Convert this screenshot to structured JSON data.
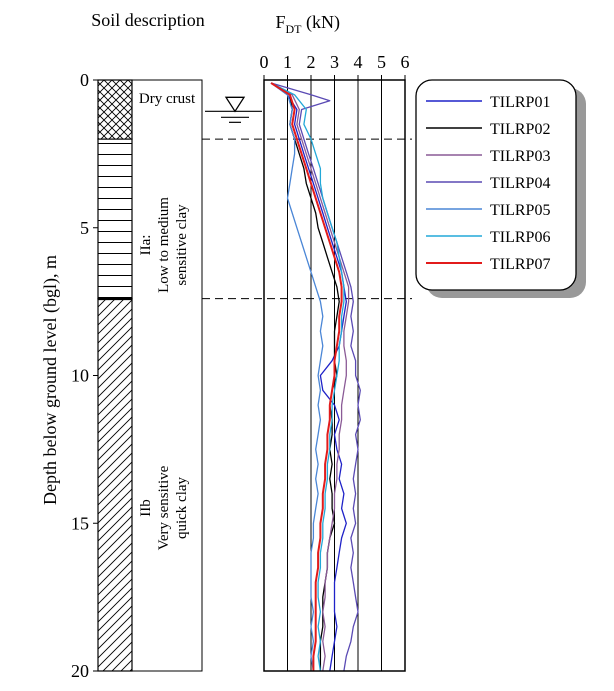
{
  "chart_data": {
    "type": "line",
    "title": "",
    "xlabel_main": "F",
    "xlabel_sub": "DT",
    "xlabel_unit": " (kN)",
    "ylabel": "Depth below ground level (bgl), m",
    "soil_title": "Soil description",
    "xlim": [
      0,
      6
    ],
    "ylim": [
      0,
      20
    ],
    "x_ticks": [
      "0",
      "1",
      "2",
      "3",
      "4",
      "5",
      "6"
    ],
    "y_ticks": [
      "0",
      "5",
      "10",
      "15",
      "20"
    ],
    "layers": [
      {
        "label": "Dry crust",
        "top": 0,
        "bottom": 2.0
      },
      {
        "label": "IIa:",
        "label2": "Low to medium",
        "label3": "sensitive clay",
        "top": 2.0,
        "bottom": 7.4
      },
      {
        "label": "IIb",
        "label2": "Very sensitive",
        "label3": "quick clay",
        "top": 7.4,
        "bottom": 20
      }
    ],
    "groundwater_depth": 1.5,
    "boundary_depths": [
      2.0,
      7.4
    ],
    "series": [
      {
        "name": "TILRP01",
        "color": "#1f22c8",
        "points": [
          [
            0.3,
            0.1
          ],
          [
            1.0,
            0.5
          ],
          [
            1.4,
            1.0
          ],
          [
            1.3,
            1.5
          ],
          [
            1.5,
            2.0
          ],
          [
            1.7,
            2.5
          ],
          [
            1.9,
            3.0
          ],
          [
            2.1,
            3.5
          ],
          [
            2.3,
            4.0
          ],
          [
            2.5,
            4.5
          ],
          [
            2.7,
            5.0
          ],
          [
            2.9,
            5.5
          ],
          [
            3.1,
            6.0
          ],
          [
            3.3,
            6.5
          ],
          [
            3.4,
            7.0
          ],
          [
            3.5,
            7.5
          ],
          [
            3.4,
            8.0
          ],
          [
            3.3,
            8.5
          ],
          [
            3.2,
            9.0
          ],
          [
            2.9,
            9.5
          ],
          [
            2.4,
            10.0
          ],
          [
            2.5,
            10.5
          ],
          [
            3.0,
            11.0
          ],
          [
            3.2,
            11.5
          ],
          [
            3.0,
            12.0
          ],
          [
            3.1,
            12.5
          ],
          [
            3.3,
            13.0
          ],
          [
            3.2,
            13.5
          ],
          [
            3.4,
            14.0
          ],
          [
            3.3,
            14.5
          ],
          [
            3.5,
            15.0
          ],
          [
            3.3,
            15.5
          ],
          [
            3.2,
            16.0
          ],
          [
            3.1,
            16.5
          ],
          [
            3.0,
            17.0
          ],
          [
            3.0,
            17.5
          ],
          [
            3.0,
            18.0
          ],
          [
            3.1,
            18.5
          ],
          [
            3.0,
            19.0
          ],
          [
            2.9,
            19.5
          ],
          [
            2.8,
            20.0
          ]
        ]
      },
      {
        "name": "TILRP02",
        "color": "#000000",
        "points": [
          [
            0.3,
            0.1
          ],
          [
            1.1,
            0.5
          ],
          [
            1.2,
            1.0
          ],
          [
            1.1,
            1.5
          ],
          [
            1.3,
            2.0
          ],
          [
            1.5,
            2.5
          ],
          [
            1.7,
            3.0
          ],
          [
            1.8,
            3.5
          ],
          [
            2.0,
            4.0
          ],
          [
            2.2,
            4.5
          ],
          [
            2.3,
            5.0
          ],
          [
            2.5,
            5.5
          ],
          [
            2.7,
            6.0
          ],
          [
            2.9,
            6.5
          ],
          [
            3.1,
            7.0
          ],
          [
            3.2,
            7.5
          ],
          [
            3.1,
            8.0
          ],
          [
            3.0,
            8.5
          ],
          [
            3.0,
            9.0
          ],
          [
            3.0,
            9.5
          ],
          [
            3.1,
            10.0
          ],
          [
            2.9,
            10.5
          ],
          [
            2.8,
            11.0
          ],
          [
            2.9,
            11.5
          ],
          [
            2.9,
            12.0
          ],
          [
            2.8,
            12.5
          ],
          [
            2.9,
            13.0
          ],
          [
            2.8,
            13.5
          ],
          [
            2.9,
            14.0
          ],
          [
            2.9,
            14.5
          ],
          [
            3.0,
            15.0
          ],
          [
            2.8,
            15.5
          ],
          [
            2.7,
            16.0
          ],
          [
            2.7,
            16.5
          ],
          [
            2.6,
            17.0
          ],
          [
            2.5,
            17.5
          ],
          [
            2.5,
            18.0
          ],
          [
            2.5,
            18.5
          ],
          [
            2.4,
            19.0
          ],
          [
            2.4,
            19.5
          ],
          [
            2.4,
            20.0
          ]
        ]
      },
      {
        "name": "TILRP03",
        "color": "#8a5a96",
        "points": [
          [
            0.3,
            0.1
          ],
          [
            1.2,
            0.5
          ],
          [
            1.5,
            1.0
          ],
          [
            1.4,
            1.5
          ],
          [
            1.6,
            2.0
          ],
          [
            1.8,
            2.5
          ],
          [
            2.0,
            3.0
          ],
          [
            2.2,
            3.5
          ],
          [
            2.4,
            4.0
          ],
          [
            2.6,
            4.5
          ],
          [
            2.8,
            5.0
          ],
          [
            3.0,
            5.5
          ],
          [
            3.2,
            6.0
          ],
          [
            3.4,
            6.5
          ],
          [
            3.6,
            7.0
          ],
          [
            3.6,
            7.5
          ],
          [
            3.5,
            8.0
          ],
          [
            3.4,
            8.5
          ],
          [
            3.4,
            9.0
          ],
          [
            3.5,
            9.5
          ],
          [
            3.5,
            10.0
          ],
          [
            3.4,
            10.5
          ],
          [
            3.3,
            11.0
          ],
          [
            3.3,
            11.5
          ],
          [
            3.2,
            12.0
          ],
          [
            3.2,
            12.5
          ],
          [
            3.1,
            13.0
          ],
          [
            3.1,
            13.5
          ],
          [
            3.0,
            14.0
          ],
          [
            3.0,
            14.5
          ],
          [
            2.9,
            15.0
          ],
          [
            2.8,
            15.5
          ],
          [
            2.7,
            16.0
          ],
          [
            2.7,
            16.5
          ],
          [
            2.6,
            17.0
          ],
          [
            2.6,
            17.5
          ],
          [
            2.5,
            18.0
          ],
          [
            2.6,
            18.5
          ],
          [
            2.5,
            19.0
          ],
          [
            2.6,
            19.5
          ],
          [
            2.5,
            20.0
          ]
        ]
      },
      {
        "name": "TILRP04",
        "color": "#5a4ab4",
        "points": [
          [
            0.3,
            0.1
          ],
          [
            2.0,
            0.5
          ],
          [
            2.8,
            0.7
          ],
          [
            1.6,
            1.0
          ],
          [
            1.5,
            1.5
          ],
          [
            1.7,
            2.0
          ],
          [
            1.9,
            2.5
          ],
          [
            2.1,
            3.0
          ],
          [
            2.3,
            3.5
          ],
          [
            2.5,
            4.0
          ],
          [
            2.7,
            4.5
          ],
          [
            2.9,
            5.0
          ],
          [
            3.1,
            5.5
          ],
          [
            3.3,
            6.0
          ],
          [
            3.5,
            6.5
          ],
          [
            3.7,
            7.0
          ],
          [
            3.8,
            7.5
          ],
          [
            3.7,
            8.0
          ],
          [
            3.8,
            8.5
          ],
          [
            3.7,
            9.0
          ],
          [
            3.9,
            9.5
          ],
          [
            3.9,
            10.0
          ],
          [
            4.1,
            10.5
          ],
          [
            4.0,
            11.0
          ],
          [
            4.1,
            11.5
          ],
          [
            3.9,
            12.0
          ],
          [
            4.0,
            12.5
          ],
          [
            3.9,
            13.0
          ],
          [
            3.8,
            13.5
          ],
          [
            3.9,
            14.0
          ],
          [
            3.8,
            14.5
          ],
          [
            3.9,
            15.0
          ],
          [
            3.7,
            15.5
          ],
          [
            3.8,
            16.0
          ],
          [
            3.7,
            16.5
          ],
          [
            3.8,
            17.0
          ],
          [
            3.9,
            17.5
          ],
          [
            4.0,
            18.0
          ],
          [
            3.8,
            18.5
          ],
          [
            3.7,
            19.0
          ],
          [
            3.5,
            19.5
          ],
          [
            3.4,
            20.0
          ]
        ]
      },
      {
        "name": "TILRP05",
        "color": "#4a86d6",
        "points": [
          [
            0.3,
            0.1
          ],
          [
            1.0,
            0.5
          ],
          [
            1.2,
            1.0
          ],
          [
            1.1,
            1.5
          ],
          [
            1.3,
            2.0
          ],
          [
            1.3,
            2.5
          ],
          [
            1.2,
            3.0
          ],
          [
            1.1,
            3.5
          ],
          [
            1.0,
            4.0
          ],
          [
            1.2,
            4.5
          ],
          [
            1.4,
            5.0
          ],
          [
            1.6,
            5.5
          ],
          [
            1.8,
            6.0
          ],
          [
            2.0,
            6.5
          ],
          [
            2.2,
            7.0
          ],
          [
            2.4,
            7.5
          ],
          [
            2.5,
            8.0
          ],
          [
            2.4,
            8.5
          ],
          [
            2.5,
            9.0
          ],
          [
            2.4,
            9.5
          ],
          [
            2.3,
            10.0
          ],
          [
            2.4,
            10.5
          ],
          [
            2.3,
            11.0
          ],
          [
            2.4,
            11.5
          ],
          [
            2.3,
            12.0
          ],
          [
            2.2,
            12.5
          ],
          [
            2.3,
            13.0
          ],
          [
            2.2,
            13.5
          ],
          [
            2.3,
            14.0
          ],
          [
            2.2,
            14.5
          ],
          [
            2.1,
            15.0
          ],
          [
            2.1,
            15.5
          ],
          [
            2.0,
            16.0
          ],
          [
            2.0,
            16.5
          ],
          [
            2.0,
            17.0
          ],
          [
            2.0,
            17.5
          ],
          [
            2.1,
            18.0
          ],
          [
            2.0,
            18.5
          ],
          [
            2.1,
            19.0
          ],
          [
            2.0,
            19.5
          ],
          [
            2.1,
            20.0
          ]
        ]
      },
      {
        "name": "TILRP06",
        "color": "#22a8d8",
        "points": [
          [
            0.3,
            0.1
          ],
          [
            1.3,
            0.5
          ],
          [
            1.8,
            1.0
          ],
          [
            1.7,
            1.5
          ],
          [
            2.0,
            2.0
          ],
          [
            2.2,
            2.5
          ],
          [
            2.4,
            3.0
          ],
          [
            2.4,
            3.5
          ],
          [
            2.5,
            4.0
          ],
          [
            2.7,
            4.5
          ],
          [
            2.9,
            5.0
          ],
          [
            3.1,
            5.5
          ],
          [
            3.2,
            6.0
          ],
          [
            3.3,
            6.5
          ],
          [
            3.4,
            7.0
          ],
          [
            3.4,
            7.5
          ],
          [
            3.3,
            8.0
          ],
          [
            3.3,
            8.5
          ],
          [
            3.2,
            9.0
          ],
          [
            3.2,
            9.5
          ],
          [
            3.1,
            10.0
          ],
          [
            3.0,
            10.5
          ],
          [
            2.9,
            11.0
          ],
          [
            2.9,
            11.5
          ],
          [
            2.8,
            12.0
          ],
          [
            2.8,
            12.5
          ],
          [
            2.7,
            13.0
          ],
          [
            2.7,
            13.5
          ],
          [
            2.6,
            14.0
          ],
          [
            2.6,
            14.5
          ],
          [
            2.5,
            15.0
          ],
          [
            2.5,
            15.5
          ],
          [
            2.4,
            16.0
          ],
          [
            2.4,
            16.5
          ],
          [
            2.3,
            17.0
          ],
          [
            2.3,
            17.5
          ],
          [
            2.4,
            18.0
          ],
          [
            2.3,
            18.5
          ],
          [
            2.4,
            19.0
          ],
          [
            2.3,
            19.5
          ],
          [
            2.4,
            20.0
          ]
        ]
      },
      {
        "name": "TILRP07",
        "color": "#e21b1b",
        "points": [
          [
            0.3,
            0.1
          ],
          [
            1.1,
            0.5
          ],
          [
            1.3,
            1.0
          ],
          [
            1.2,
            1.5
          ],
          [
            1.4,
            2.0
          ],
          [
            1.6,
            2.5
          ],
          [
            1.8,
            3.0
          ],
          [
            2.0,
            3.5
          ],
          [
            2.2,
            4.0
          ],
          [
            2.4,
            4.5
          ],
          [
            2.6,
            5.0
          ],
          [
            2.8,
            5.5
          ],
          [
            3.0,
            6.0
          ],
          [
            3.2,
            6.5
          ],
          [
            3.3,
            7.0
          ],
          [
            3.3,
            7.5
          ],
          [
            3.2,
            8.0
          ],
          [
            3.2,
            8.5
          ],
          [
            3.1,
            9.0
          ],
          [
            3.0,
            9.5
          ],
          [
            3.0,
            10.0
          ],
          [
            2.9,
            10.5
          ],
          [
            2.8,
            11.0
          ],
          [
            2.8,
            11.5
          ],
          [
            2.7,
            12.0
          ],
          [
            2.7,
            12.5
          ],
          [
            2.6,
            13.0
          ],
          [
            2.6,
            13.5
          ],
          [
            2.5,
            14.0
          ],
          [
            2.5,
            14.5
          ],
          [
            2.4,
            15.0
          ],
          [
            2.4,
            15.5
          ],
          [
            2.3,
            16.0
          ],
          [
            2.3,
            16.5
          ],
          [
            2.2,
            17.0
          ],
          [
            2.2,
            17.5
          ],
          [
            2.2,
            18.0
          ],
          [
            2.2,
            18.5
          ],
          [
            2.2,
            19.0
          ],
          [
            2.1,
            19.5
          ],
          [
            2.1,
            20.0
          ]
        ]
      }
    ]
  }
}
